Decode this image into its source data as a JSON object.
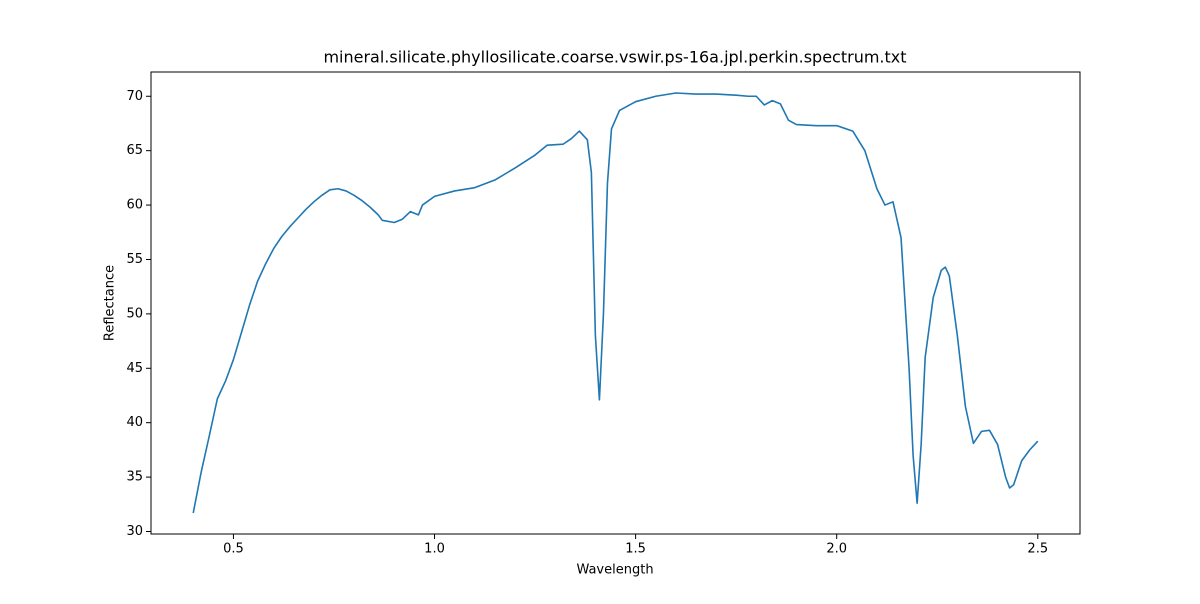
{
  "chart_data": {
    "type": "line",
    "title": "mineral.silicate.phyllosilicate.coarse.vswir.ps-16a.jpl.perkin.spectrum.txt",
    "xlabel": "Wavelength",
    "ylabel": "Reflectance",
    "xlim": [
      0.295,
      2.605
    ],
    "ylim": [
      29.77,
      72.23
    ],
    "xticks": [
      0.5,
      {
        "value": 1,
        "label": "1.0"
      },
      1.5,
      {
        "value": 2,
        "label": "2.0"
      },
      2.5
    ],
    "yticks": [
      30,
      35,
      40,
      45,
      50,
      55,
      60,
      65,
      70
    ],
    "grid": false,
    "x": [
      0.4,
      0.42,
      0.44,
      0.46,
      0.48,
      0.5,
      0.52,
      0.54,
      0.56,
      0.58,
      0.6,
      0.62,
      0.64,
      0.66,
      0.68,
      0.7,
      0.72,
      0.74,
      0.76,
      0.78,
      0.8,
      0.82,
      0.84,
      0.86,
      0.87,
      0.9,
      0.92,
      0.94,
      0.96,
      0.97,
      1.0,
      1.05,
      1.1,
      1.15,
      1.2,
      1.25,
      1.28,
      1.32,
      1.34,
      1.36,
      1.38,
      1.39,
      1.4,
      1.41,
      1.42,
      1.43,
      1.44,
      1.46,
      1.5,
      1.55,
      1.6,
      1.65,
      1.7,
      1.75,
      1.78,
      1.8,
      1.82,
      1.84,
      1.86,
      1.88,
      1.9,
      1.95,
      2.0,
      2.04,
      2.07,
      2.1,
      2.12,
      2.14,
      2.16,
      2.18,
      2.19,
      2.2,
      2.21,
      2.22,
      2.24,
      2.26,
      2.27,
      2.28,
      2.3,
      2.32,
      2.34,
      2.36,
      2.38,
      2.4,
      2.42,
      2.43,
      2.44,
      2.46,
      2.48,
      2.5
    ],
    "series": [
      {
        "color": "#1f77b4",
        "values": [
          31.7,
          35.5,
          38.8,
          42.2,
          43.8,
          45.8,
          48.3,
          50.8,
          53.0,
          54.6,
          56.0,
          57.1,
          58.0,
          58.8,
          59.6,
          60.3,
          60.9,
          61.4,
          61.5,
          61.3,
          60.9,
          60.4,
          59.8,
          59.1,
          58.6,
          58.4,
          58.7,
          59.4,
          59.1,
          60.0,
          60.8,
          61.3,
          61.6,
          62.3,
          63.4,
          64.6,
          65.5,
          65.6,
          66.1,
          66.8,
          66.0,
          63.0,
          48.0,
          42.1,
          50.0,
          62.0,
          67.0,
          68.7,
          69.5,
          70.0,
          70.3,
          70.2,
          70.2,
          70.1,
          70.0,
          70.0,
          69.2,
          69.6,
          69.3,
          67.8,
          67.4,
          67.3,
          67.3,
          66.8,
          65.0,
          61.5,
          60.0,
          60.3,
          57.0,
          45.0,
          37.0,
          32.6,
          38.0,
          46.0,
          51.5,
          54.0,
          54.3,
          53.5,
          48.0,
          41.5,
          38.1,
          39.2,
          39.3,
          38.0,
          35.0,
          34.0,
          34.3,
          36.5,
          37.5,
          38.3
        ]
      }
    ]
  }
}
